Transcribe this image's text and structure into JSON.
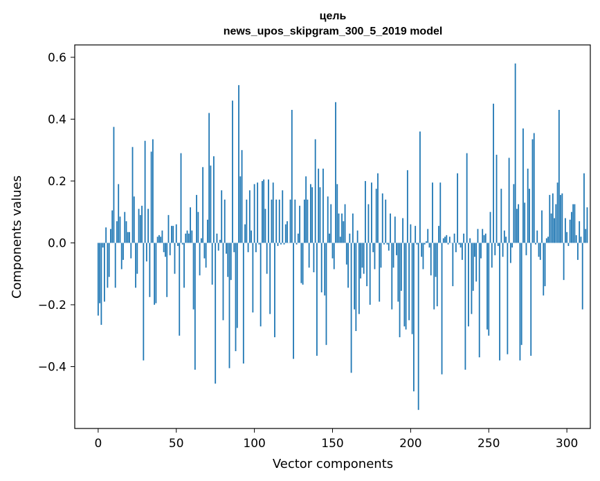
{
  "chart_data": {
    "type": "bar",
    "title": "цель",
    "subtitle": "news_upos_skipgram_300_5_2019 model",
    "xlabel": "Vector components",
    "ylabel": "Components values",
    "xlim": [
      -15,
      315
    ],
    "ylim": [
      -0.6,
      0.64
    ],
    "x_ticks": [
      0,
      50,
      100,
      150,
      200,
      250,
      300
    ],
    "x_tick_labels": [
      "0",
      "50",
      "100",
      "150",
      "200",
      "250",
      "300"
    ],
    "y_ticks": [
      -0.4,
      -0.2,
      0.0,
      0.2,
      0.4,
      0.6
    ],
    "y_tick_labels": [
      "−0.4",
      "−0.2",
      "0.0",
      "0.2",
      "0.4",
      "0.6"
    ],
    "grid": false,
    "legend": "none",
    "bar_color": "#1f77b4",
    "values": [
      -0.235,
      -0.195,
      -0.265,
      -0.015,
      -0.19,
      0.05,
      -0.145,
      -0.11,
      0.045,
      0.105,
      0.375,
      -0.145,
      0.07,
      0.19,
      0.085,
      -0.085,
      -0.055,
      0.1,
      0.07,
      0.035,
      0.035,
      -0.05,
      0.31,
      0.15,
      -0.145,
      -0.1,
      0.11,
      0.09,
      0.12,
      -0.38,
      0.33,
      -0.06,
      0.11,
      -0.175,
      0.295,
      0.335,
      -0.2,
      -0.195,
      0.02,
      0.025,
      0.02,
      0.04,
      -0.03,
      -0.045,
      -0.175,
      0.09,
      -0.04,
      0.055,
      0.055,
      -0.1,
      0.06,
      -0.01,
      -0.3,
      0.29,
      -0.005,
      -0.145,
      0.03,
      0.04,
      0.03,
      0.115,
      0.04,
      -0.215,
      -0.41,
      0.155,
      0.1,
      -0.105,
      0.015,
      0.245,
      -0.05,
      -0.08,
      0.075,
      0.42,
      0.25,
      -0.135,
      0.28,
      -0.455,
      0.03,
      -0.025,
      0.01,
      0.17,
      -0.25,
      0.14,
      -0.035,
      -0.11,
      -0.405,
      -0.12,
      0.46,
      -0.03,
      -0.35,
      -0.275,
      0.51,
      0.215,
      0.3,
      -0.39,
      0.06,
      0.14,
      -0.03,
      0.17,
      0.04,
      -0.225,
      0.19,
      -0.03,
      0.195,
      -0.005,
      -0.27,
      0.2,
      0.205,
      0.11,
      -0.1,
      0.205,
      -0.23,
      0.14,
      0.195,
      -0.305,
      0.14,
      -0.01,
      0.14,
      -0.005,
      0.17,
      -0.005,
      0.06,
      0.07,
      0.0,
      0.14,
      0.43,
      -0.375,
      0.14,
      -0.005,
      0.03,
      0.12,
      -0.13,
      -0.135,
      0.14,
      0.215,
      0.14,
      -0.08,
      0.19,
      0.18,
      -0.095,
      0.335,
      -0.365,
      0.24,
      0.18,
      -0.16,
      0.24,
      -0.17,
      -0.33,
      0.15,
      0.03,
      0.125,
      -0.05,
      -0.085,
      0.455,
      0.19,
      0.095,
      0.02,
      0.095,
      0.07,
      0.125,
      -0.07,
      -0.145,
      0.03,
      -0.42,
      0.095,
      -0.215,
      -0.285,
      0.04,
      -0.23,
      -0.115,
      -0.08,
      -0.1,
      0.2,
      -0.14,
      0.125,
      -0.2,
      0.195,
      -0.03,
      -0.085,
      0.175,
      0.225,
      -0.19,
      -0.08,
      0.16,
      -0.005,
      0.14,
      -0.005,
      -0.025,
      0.095,
      -0.215,
      -0.08,
      0.085,
      -0.04,
      -0.19,
      -0.305,
      -0.155,
      0.08,
      -0.27,
      -0.28,
      0.235,
      -0.25,
      0.06,
      -0.295,
      -0.48,
      0.055,
      -0.005,
      -0.54,
      0.36,
      -0.045,
      -0.085,
      -0.005,
      0.005,
      0.045,
      -0.015,
      -0.105,
      0.195,
      -0.215,
      -0.11,
      -0.205,
      0.055,
      0.195,
      -0.425,
      0.015,
      0.02,
      0.025,
      -0.005,
      0.02,
      0.0,
      -0.14,
      0.03,
      -0.03,
      0.225,
      -0.005,
      -0.015,
      -0.055,
      0.03,
      -0.41,
      0.29,
      -0.27,
      0.015,
      -0.23,
      -0.155,
      -0.045,
      -0.125,
      0.045,
      -0.37,
      -0.05,
      0.045,
      0.025,
      0.03,
      -0.28,
      -0.3,
      0.1,
      -0.08,
      0.45,
      -0.04,
      0.285,
      -0.01,
      -0.38,
      0.175,
      -0.045,
      0.04,
      0.02,
      -0.36,
      0.275,
      -0.065,
      -0.015,
      0.19,
      0.58,
      0.11,
      0.125,
      -0.38,
      -0.33,
      0.37,
      0.13,
      -0.04,
      0.24,
      0.175,
      -0.365,
      0.335,
      0.355,
      -0.005,
      0.04,
      -0.045,
      -0.055,
      0.105,
      -0.17,
      -0.14,
      0.015,
      0.02,
      0.155,
      0.095,
      0.16,
      0.08,
      0.125,
      0.195,
      0.43,
      0.155,
      0.16,
      -0.12,
      0.08,
      0.035,
      -0.01,
      0.075,
      0.1,
      0.125,
      0.125,
      0.025,
      -0.055,
      0.07,
      0.02,
      -0.215,
      0.225,
      0.045,
      0.115
    ]
  }
}
